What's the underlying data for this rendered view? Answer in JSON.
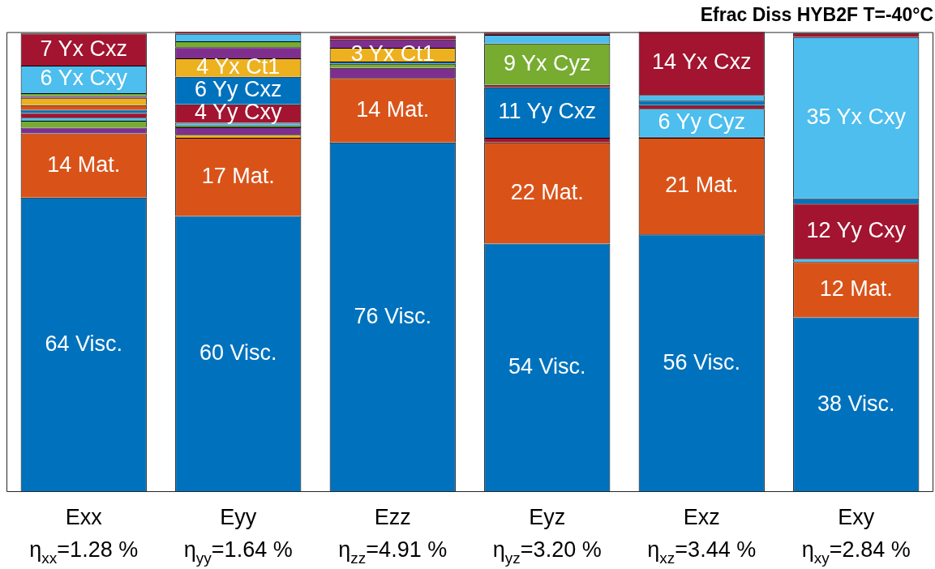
{
  "chart_data": {
    "type": "bar",
    "stacked": true,
    "title": "Efrac Diss HYB2F T=-40°C",
    "categories": [
      "Exx\nη$_{xx}$=1.28 %",
      "Eyy\nη$_{yy}$=1.64 %",
      "Ezz\nη$_{zz}$=4.91 %",
      "Eyz\nη$_{yz}$=3.20 %",
      "Exz\nη$_{xz}$=3.44 %",
      "Exy\nη$_{xy}$=2.84 %"
    ],
    "ylim": [
      0,
      100
    ],
    "tick_labels": "x",
    "series": [
      {
        "values": [
          64,
          60,
          76,
          54,
          56,
          38
        ],
        "colors": [
          "#0072bd",
          "#0072bd",
          "#0072bd",
          "#0072bd",
          "#0072bd",
          "#0072bd"
        ],
        "value_labels": [
          "64 Visc.",
          "60 Visc.",
          "76 Visc.",
          "54 Visc.",
          "56 Visc.",
          "38 Visc."
        ]
      },
      {
        "values": [
          14,
          17,
          14,
          22,
          21,
          12
        ],
        "colors": [
          "#d95319",
          "#d95319",
          "#d95319",
          "#d95319",
          "#d95319",
          "#d95319"
        ],
        "value_labels": [
          "14 Mat.",
          "17 Mat.",
          "14 Mat.",
          "22 Mat.",
          "21 Mat.",
          "12 Mat."
        ]
      },
      {
        "values": [
          1.2,
          0.7,
          2.2,
          1.0,
          0.3,
          0.7
        ],
        "colors": [
          "#7e2f8e",
          "#edb120",
          "#7e2f8e",
          "#a2142f",
          "#0072bd",
          "#4dbeee"
        ]
      },
      {
        "values": [
          1.5,
          1.6,
          0.9,
          11,
          6,
          12
        ],
        "colors": [
          "#77ac30",
          "#7e2f8e",
          "#77ac30",
          "#0072bd",
          "#4dbeee",
          "#a2142f"
        ],
        "value_labels": [
          null,
          null,
          null,
          "11 Yy Cxz",
          "6 Yy Cyz",
          "12 Yy Cxy"
        ]
      },
      {
        "values": [
          0.7,
          0.4,
          0.5,
          0.5,
          0.8,
          1.2
        ],
        "colors": [
          "#4dbeee",
          "#77ac30",
          "#0072bd",
          "#a2142f",
          "#a2142f",
          "#0072bd"
        ]
      },
      {
        "values": [
          1.0,
          0.6,
          3,
          9,
          1.0,
          35
        ],
        "colors": [
          "#a2142f",
          "#4dbeee",
          "#edb120",
          "#77ac30",
          "#0072bd",
          "#4dbeee"
        ],
        "value_labels": [
          null,
          null,
          "3 Yx Ct1",
          "9 Yx Cyz",
          null,
          "35 Yx Cxy"
        ]
      },
      {
        "values": [
          0.7,
          4,
          1.8,
          1.9,
          1.2,
          0.9
        ],
        "colors": [
          "#0072bd",
          "#a2142f",
          "#7e2f8e",
          "#4dbeee",
          "#4dbeee",
          "#a2142f"
        ],
        "value_labels": [
          null,
          "4 Yy Cxy",
          null,
          null,
          null,
          null
        ]
      },
      {
        "values": [
          1.0,
          6,
          0.8,
          0.5,
          14,
          null
        ],
        "colors": [
          "#d95319",
          "#0072bd",
          "#a2142f",
          "#a2142f",
          "#a2142f",
          "#a2142f"
        ],
        "value_labels": [
          null,
          "6 Yy Cxz",
          null,
          null,
          "14 Yx Cxz",
          null
        ]
      },
      {
        "values": [
          1.6,
          4,
          null,
          null,
          null,
          null
        ],
        "colors": [
          "#edb120",
          "#edb120",
          "#edb120",
          "#edb120",
          "#edb120",
          "#edb120"
        ],
        "value_labels": [
          null,
          "4 Yx Ct1",
          null,
          null,
          null,
          null
        ]
      },
      {
        "values": [
          0.4,
          2.4,
          null,
          null,
          null,
          null
        ],
        "colors": [
          "#7e2f8e",
          "#7e2f8e",
          "#7e2f8e",
          "#7e2f8e",
          "#7e2f8e",
          "#7e2f8e"
        ]
      },
      {
        "values": [
          0.6,
          1.3,
          null,
          null,
          null,
          null
        ],
        "colors": [
          "#77ac30",
          "#77ac30",
          "#77ac30",
          "#77ac30",
          "#77ac30",
          "#77ac30"
        ]
      },
      {
        "values": [
          6,
          1.6,
          null,
          null,
          null,
          null
        ],
        "colors": [
          "#4dbeee",
          "#4dbeee",
          "#4dbeee",
          "#4dbeee",
          "#4dbeee",
          "#4dbeee"
        ],
        "value_labels": [
          "6 Yx Cxy",
          null,
          null,
          null,
          null,
          null
        ]
      },
      {
        "values": [
          7,
          0.7,
          null,
          null,
          null,
          null
        ],
        "colors": [
          "#a2142f",
          "#a2142f",
          "#a2142f",
          "#a2142f",
          "#a2142f",
          "#a2142f"
        ],
        "value_labels": [
          "7 Yx Cxz",
          null,
          null,
          null,
          null,
          null
        ]
      }
    ]
  }
}
